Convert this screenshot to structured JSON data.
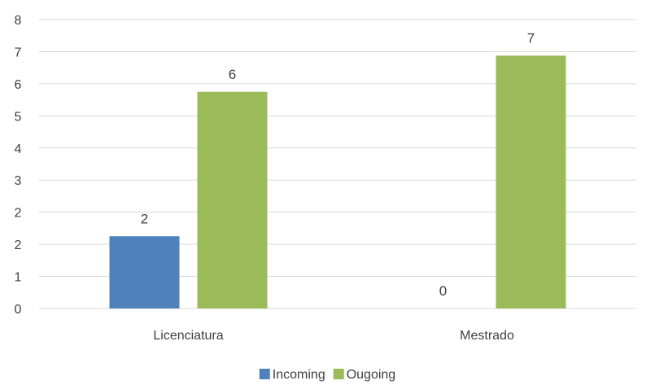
{
  "chart_data": {
    "type": "bar",
    "categories": [
      "Licenciatura",
      "Mestrado"
    ],
    "series": [
      {
        "name": "Incoming",
        "values": [
          2,
          0
        ],
        "color": "#4f81bd"
      },
      {
        "name": "Ougoing",
        "values": [
          6,
          7
        ],
        "color": "#9bbb59"
      }
    ],
    "data_labels": [
      [
        "2",
        "0"
      ],
      [
        "6",
        "7"
      ]
    ],
    "yticks": [
      "0",
      "1",
      "2",
      "2",
      "3",
      "4",
      "5",
      "6",
      "7",
      "8"
    ],
    "ylim": [
      0,
      8
    ],
    "grid": true,
    "gridline_color": "#d9d9d9",
    "legend_position": "bottom",
    "title": "",
    "xlabel": "",
    "ylabel": ""
  }
}
